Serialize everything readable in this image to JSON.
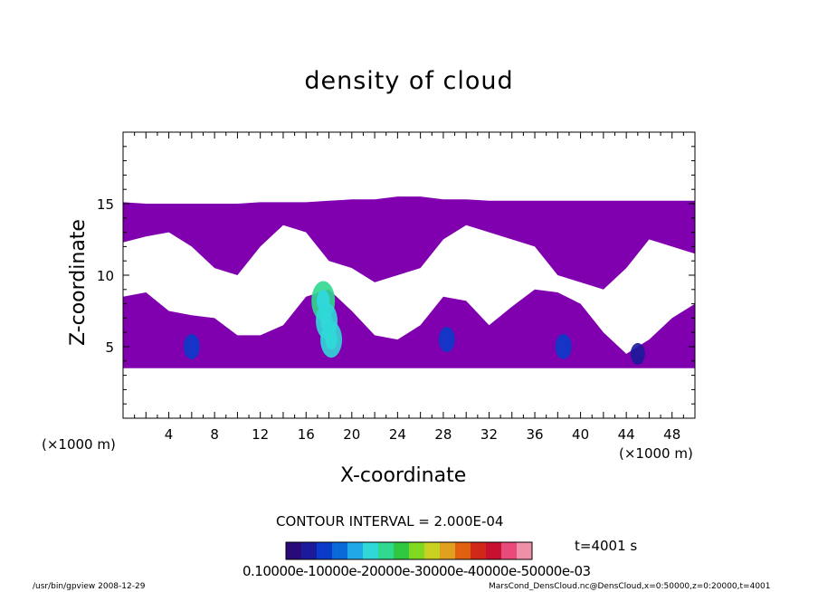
{
  "chart_data": {
    "type": "heatmap",
    "title": "density of cloud",
    "xlabel": "X-coordinate",
    "ylabel": "Z-coordinate",
    "x_unit_left": "(×1000 m)",
    "x_unit_right": "(×1000 m)",
    "xlim": [
      0,
      50
    ],
    "ylim": [
      0,
      20
    ],
    "x_ticks": [
      4,
      8,
      12,
      16,
      20,
      24,
      28,
      32,
      36,
      40,
      44,
      48
    ],
    "y_ticks": [
      5,
      10,
      15
    ],
    "contour_interval": "CONTOUR INTERVAL = 2.000E-04",
    "time_label": "t=4001 s",
    "colorbar_labels": "0.10000e-10000e-20000e-30000e-40000e-50000e-03",
    "colorbar_colors": [
      "#2a0a7a",
      "#1a1a9a",
      "#0a3ac8",
      "#0a6ad8",
      "#20a8e8",
      "#30d8d8",
      "#30d890",
      "#30c840",
      "#80d820",
      "#c8d020",
      "#e0a020",
      "#e06010",
      "#d02818",
      "#c81030",
      "#e84a7a",
      "#f090a8"
    ],
    "cloud_color": "#8000b0",
    "cloud_bands": {
      "upper_band": [
        {
          "x": 0,
          "top": 15.1,
          "bottom": 12.3
        },
        {
          "x": 2,
          "top": 15.0,
          "bottom": 12.7
        },
        {
          "x": 4,
          "top": 15.0,
          "bottom": 13.0
        },
        {
          "x": 6,
          "top": 15.0,
          "bottom": 12.0
        },
        {
          "x": 8,
          "top": 15.0,
          "bottom": 10.5
        },
        {
          "x": 10,
          "top": 15.0,
          "bottom": 10.0
        },
        {
          "x": 12,
          "top": 15.1,
          "bottom": 12.0
        },
        {
          "x": 14,
          "top": 15.1,
          "bottom": 13.5
        },
        {
          "x": 16,
          "top": 15.1,
          "bottom": 13.0
        },
        {
          "x": 18,
          "top": 15.2,
          "bottom": 11.0
        },
        {
          "x": 20,
          "top": 15.3,
          "bottom": 10.5
        },
        {
          "x": 22,
          "top": 15.3,
          "bottom": 9.5
        },
        {
          "x": 24,
          "top": 15.5,
          "bottom": 10.0
        },
        {
          "x": 26,
          "top": 15.5,
          "bottom": 10.5
        },
        {
          "x": 28,
          "top": 15.3,
          "bottom": 12.5
        },
        {
          "x": 30,
          "top": 15.3,
          "bottom": 13.5
        },
        {
          "x": 32,
          "top": 15.2,
          "bottom": 13.0
        },
        {
          "x": 34,
          "top": 15.2,
          "bottom": 12.5
        },
        {
          "x": 36,
          "top": 15.2,
          "bottom": 12.0
        },
        {
          "x": 38,
          "top": 15.2,
          "bottom": 10.0
        },
        {
          "x": 40,
          "top": 15.2,
          "bottom": 9.5
        },
        {
          "x": 42,
          "top": 15.2,
          "bottom": 9.0
        },
        {
          "x": 44,
          "top": 15.2,
          "bottom": 10.5
        },
        {
          "x": 46,
          "top": 15.2,
          "bottom": 12.5
        },
        {
          "x": 48,
          "top": 15.2,
          "bottom": 12.0
        },
        {
          "x": 50,
          "top": 15.2,
          "bottom": 11.5
        }
      ],
      "lower_band": [
        {
          "x": 0,
          "top": 8.5,
          "bottom": 3.5
        },
        {
          "x": 2,
          "top": 8.8,
          "bottom": 3.5
        },
        {
          "x": 4,
          "top": 7.5,
          "bottom": 3.5
        },
        {
          "x": 6,
          "top": 7.2,
          "bottom": 3.5
        },
        {
          "x": 8,
          "top": 7.0,
          "bottom": 3.5
        },
        {
          "x": 10,
          "top": 5.8,
          "bottom": 3.5
        },
        {
          "x": 12,
          "top": 5.8,
          "bottom": 3.5
        },
        {
          "x": 14,
          "top": 6.5,
          "bottom": 3.5
        },
        {
          "x": 16,
          "top": 8.5,
          "bottom": 3.5
        },
        {
          "x": 18,
          "top": 9.0,
          "bottom": 3.5
        },
        {
          "x": 20,
          "top": 7.5,
          "bottom": 3.5
        },
        {
          "x": 22,
          "top": 5.8,
          "bottom": 3.5
        },
        {
          "x": 24,
          "top": 5.5,
          "bottom": 3.5
        },
        {
          "x": 26,
          "top": 6.5,
          "bottom": 3.5
        },
        {
          "x": 28,
          "top": 8.5,
          "bottom": 3.5
        },
        {
          "x": 30,
          "top": 8.2,
          "bottom": 3.5
        },
        {
          "x": 32,
          "top": 6.5,
          "bottom": 3.5
        },
        {
          "x": 34,
          "top": 7.8,
          "bottom": 3.5
        },
        {
          "x": 36,
          "top": 9.0,
          "bottom": 3.5
        },
        {
          "x": 38,
          "top": 8.8,
          "bottom": 3.5
        },
        {
          "x": 40,
          "top": 8.0,
          "bottom": 3.5
        },
        {
          "x": 42,
          "top": 6.0,
          "bottom": 3.5
        },
        {
          "x": 44,
          "top": 4.5,
          "bottom": 3.5
        },
        {
          "x": 46,
          "top": 5.5,
          "bottom": 3.5
        },
        {
          "x": 48,
          "top": 7.0,
          "bottom": 3.5
        },
        {
          "x": 50,
          "top": 8.0,
          "bottom": 3.5
        }
      ]
    },
    "dense_spots": [
      {
        "x": 6.0,
        "y": 5.0,
        "level": 2
      },
      {
        "x": 17.5,
        "y": 8.2,
        "level": 6
      },
      {
        "x": 17.8,
        "y": 6.8,
        "level": 5
      },
      {
        "x": 18.2,
        "y": 5.5,
        "level": 5
      },
      {
        "x": 28.3,
        "y": 5.5,
        "level": 2
      },
      {
        "x": 38.5,
        "y": 5.0,
        "level": 2
      },
      {
        "x": 45.0,
        "y": 4.5,
        "level": 1
      }
    ]
  },
  "footer": {
    "left": "/usr/bin/gpview   2008-12-29",
    "right": "MarsCond_DensCloud.nc@DensCloud,x=0:50000,z=0:20000,t=4001"
  }
}
